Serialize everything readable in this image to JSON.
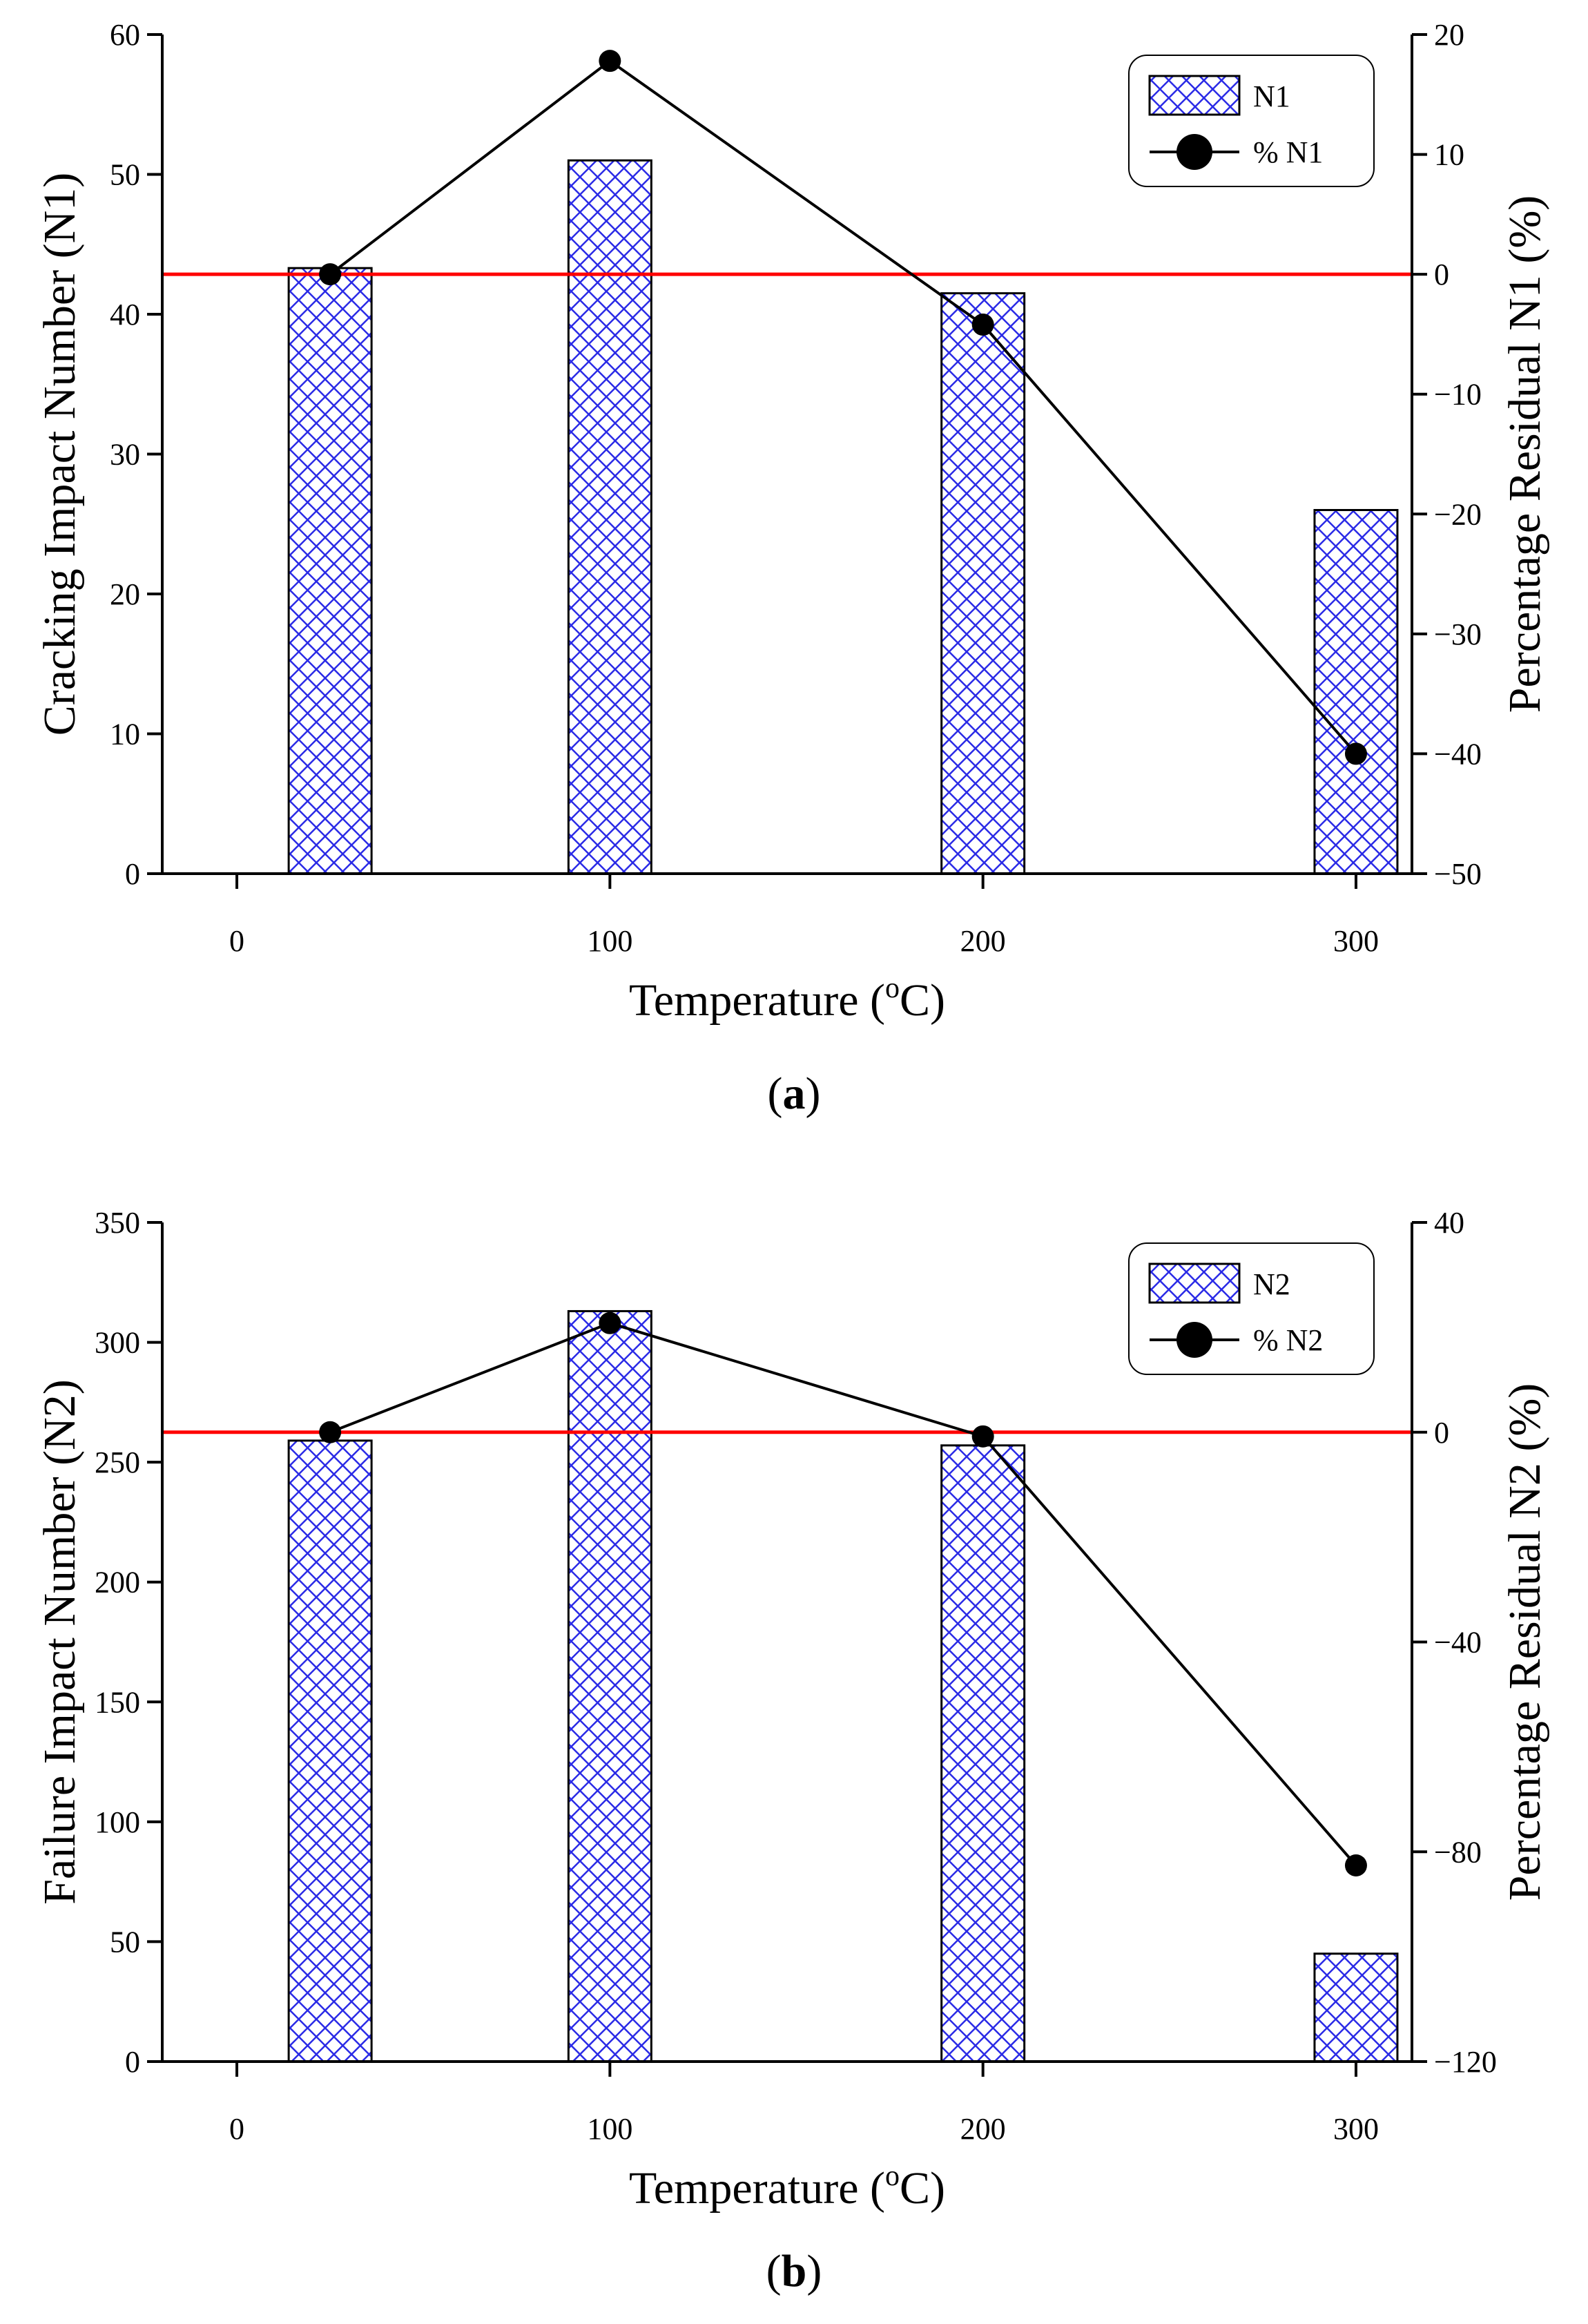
{
  "chart_data": [
    {
      "type": "bar+line",
      "id": "a",
      "caption_letter": "a",
      "xlabel": "Temperature (",
      "xlabel_sup": "o",
      "xlabel_end": "C)",
      "ylabel_left": "Cracking Impact Number (N1)",
      "ylabel_right": "Percentage Residual N1 (%)",
      "xlim": [
        -20,
        315
      ],
      "x_ticks": [
        0,
        100,
        200,
        300
      ],
      "ylim_left": [
        0,
        60
      ],
      "y_ticks_left": [
        0,
        10,
        20,
        30,
        40,
        50,
        60
      ],
      "ylim_right": [
        -50,
        20
      ],
      "y_ticks_right": [
        -50,
        -40,
        -30,
        -20,
        -10,
        0,
        10,
        20
      ],
      "reference_line_right": 0,
      "bar_series": {
        "name": "N1",
        "x": [
          25,
          100,
          200,
          300
        ],
        "values": [
          43.3,
          51,
          41.5,
          26
        ]
      },
      "line_series": {
        "name": "% N1",
        "x": [
          25,
          100,
          200,
          300
        ],
        "values": [
          0,
          17.8,
          -4.2,
          -40
        ]
      },
      "legend": {
        "bar_label": "N1",
        "line_label": "% N1",
        "position": "top-right"
      }
    },
    {
      "type": "bar+line",
      "id": "b",
      "caption_letter": "b",
      "xlabel": "Temperature (",
      "xlabel_sup": "o",
      "xlabel_end": "C)",
      "ylabel_left": "Failure Impact Number (N2)",
      "ylabel_right": "Percentage Residual N2 (%)",
      "xlim": [
        -20,
        315
      ],
      "x_ticks": [
        0,
        100,
        200,
        300
      ],
      "ylim_left": [
        0,
        350
      ],
      "y_ticks_left": [
        0,
        50,
        100,
        150,
        200,
        250,
        300,
        350
      ],
      "ylim_right": [
        -120,
        40
      ],
      "y_ticks_right": [
        -120,
        -80,
        -40,
        0,
        40
      ],
      "reference_line_right": 0,
      "bar_series": {
        "name": "N2",
        "x": [
          25,
          100,
          200,
          300
        ],
        "values": [
          259,
          313,
          257,
          45
        ]
      },
      "line_series": {
        "name": "% N2",
        "x": [
          25,
          100,
          200,
          300
        ],
        "values": [
          0,
          20.8,
          -0.8,
          -82.6
        ]
      },
      "legend": {
        "bar_label": "N2",
        "line_label": "% N2",
        "position": "top-right"
      }
    }
  ]
}
